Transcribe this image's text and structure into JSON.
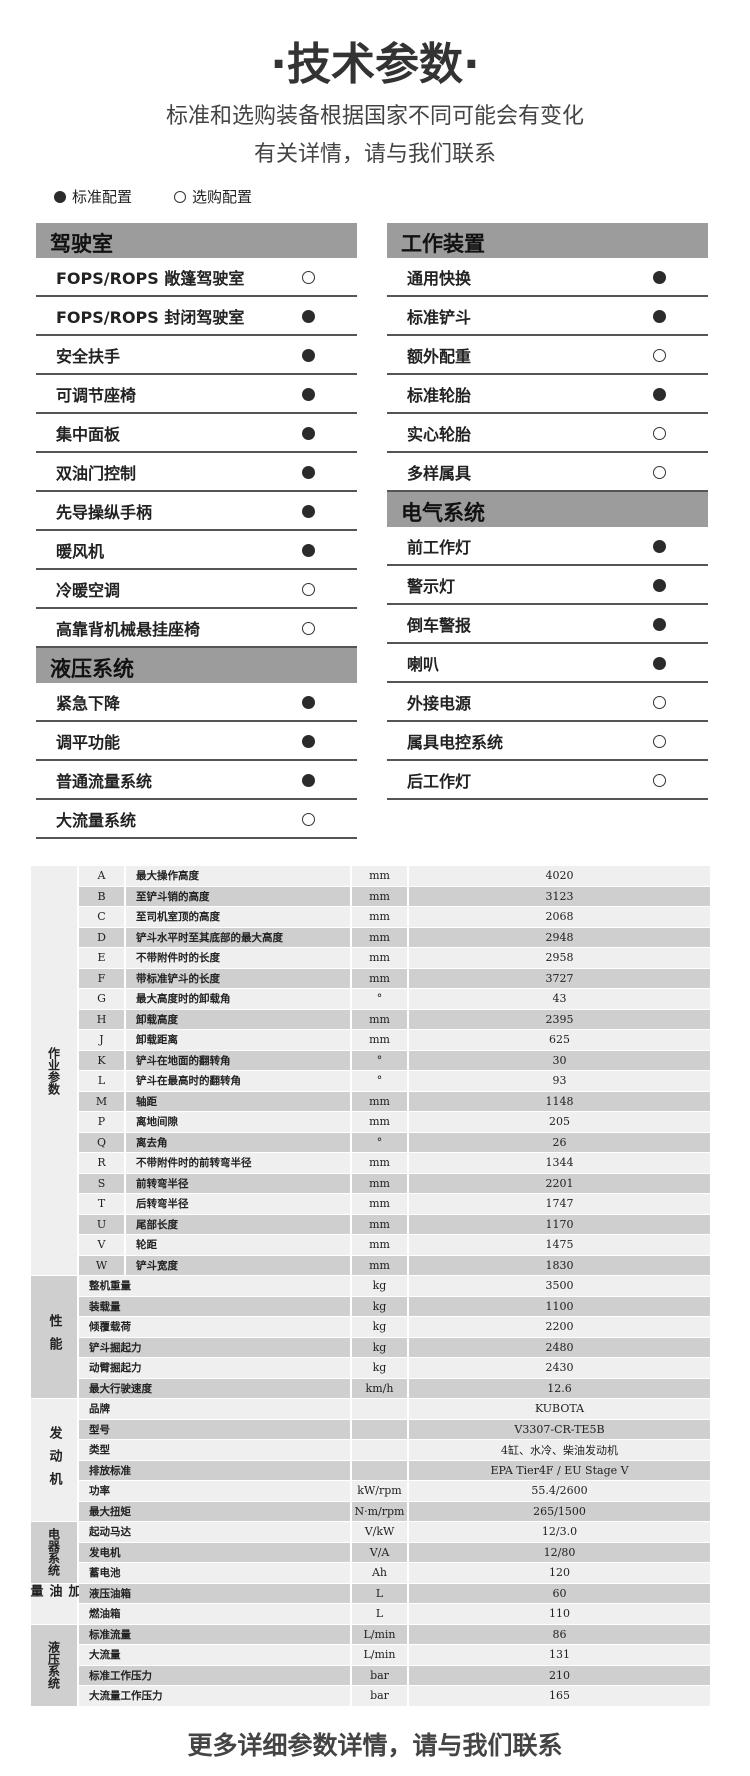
{
  "header": {
    "title": "·技术参数·",
    "subtitle1": "标准和选购装备根据国家不同可能会有变化",
    "subtitle2": "有关详情，请与我们联系"
  },
  "legend": {
    "standard": "标准配置",
    "optional": "选购配置"
  },
  "colors": {
    "section_header": "#9c9c9c",
    "row_light": "#efefef",
    "row_dark": "#cfcfcf",
    "dot": "#2b2b2b"
  },
  "sections_left": [
    {
      "title": "驾驶室",
      "items": [
        {
          "label": "FOPS/ROPS 敞篷驾驶室",
          "state": "optional"
        },
        {
          "label": "FOPS/ROPS 封闭驾驶室",
          "state": "standard"
        },
        {
          "label": "安全扶手",
          "state": "standard"
        },
        {
          "label": "可调节座椅",
          "state": "standard"
        },
        {
          "label": "集中面板",
          "state": "standard"
        },
        {
          "label": "双油门控制",
          "state": "standard"
        },
        {
          "label": "先导操纵手柄",
          "state": "standard"
        },
        {
          "label": "暖风机",
          "state": "standard"
        },
        {
          "label": "冷暖空调",
          "state": "optional"
        },
        {
          "label": "高靠背机械悬挂座椅",
          "state": "optional"
        }
      ]
    },
    {
      "title": "液压系统",
      "items": [
        {
          "label": "紧急下降",
          "state": "standard"
        },
        {
          "label": "调平功能",
          "state": "standard"
        },
        {
          "label": "普通流量系统",
          "state": "standard"
        },
        {
          "label": "大流量系统",
          "state": "optional"
        }
      ]
    }
  ],
  "sections_right": [
    {
      "title": "工作装置",
      "items": [
        {
          "label": "通用快换",
          "state": "standard"
        },
        {
          "label": "标准铲斗",
          "state": "standard"
        },
        {
          "label": "额外配重",
          "state": "optional"
        },
        {
          "label": "标准轮胎",
          "state": "standard"
        },
        {
          "label": "实心轮胎",
          "state": "optional"
        },
        {
          "label": "多样属具",
          "state": "optional"
        }
      ]
    },
    {
      "title": "电气系统",
      "items": [
        {
          "label": "前工作灯",
          "state": "standard"
        },
        {
          "label": "警示灯",
          "state": "standard"
        },
        {
          "label": "倒车警报",
          "state": "standard"
        },
        {
          "label": "喇叭",
          "state": "standard"
        },
        {
          "label": "外接电源",
          "state": "optional"
        },
        {
          "label": "属具电控系统",
          "state": "optional"
        },
        {
          "label": "后工作灯",
          "state": "optional"
        }
      ]
    }
  ],
  "specs": [
    {
      "category": "作业参数",
      "rows": [
        {
          "code": "A",
          "name": "最大操作高度",
          "unit": "mm",
          "value": "4020"
        },
        {
          "code": "B",
          "name": "至铲斗销的高度",
          "unit": "mm",
          "value": "3123"
        },
        {
          "code": "C",
          "name": "至司机室顶的高度",
          "unit": "mm",
          "value": "2068"
        },
        {
          "code": "D",
          "name": "铲斗水平时至其底部的最大高度",
          "unit": "mm",
          "value": "2948"
        },
        {
          "code": "E",
          "name": "不带附件时的长度",
          "unit": "mm",
          "value": "2958"
        },
        {
          "code": "F",
          "name": "带标准铲斗的长度",
          "unit": "mm",
          "value": "3727"
        },
        {
          "code": "G",
          "name": "最大高度时的卸载角",
          "unit": "°",
          "value": "43"
        },
        {
          "code": "H",
          "name": "卸载高度",
          "unit": "mm",
          "value": "2395"
        },
        {
          "code": "J",
          "name": "卸载距离",
          "unit": "mm",
          "value": "625"
        },
        {
          "code": "K",
          "name": "铲斗在地面的翻转角",
          "unit": "°",
          "value": "30"
        },
        {
          "code": "L",
          "name": "铲斗在最高时的翻转角",
          "unit": "°",
          "value": "93"
        },
        {
          "code": "M",
          "name": "轴距",
          "unit": "mm",
          "value": "1148"
        },
        {
          "code": "P",
          "name": "离地间隙",
          "unit": "mm",
          "value": "205"
        },
        {
          "code": "Q",
          "name": "离去角",
          "unit": "°",
          "value": "26"
        },
        {
          "code": "R",
          "name": "不带附件时的前转弯半径",
          "unit": "mm",
          "value": "1344"
        },
        {
          "code": "S",
          "name": "前转弯半径",
          "unit": "mm",
          "value": "2201"
        },
        {
          "code": "T",
          "name": "后转弯半径",
          "unit": "mm",
          "value": "1747"
        },
        {
          "code": "U",
          "name": "尾部长度",
          "unit": "mm",
          "value": "1170"
        },
        {
          "code": "V",
          "name": "轮距",
          "unit": "mm",
          "value": "1475"
        },
        {
          "code": "W",
          "name": "铲斗宽度",
          "unit": "mm",
          "value": "1830"
        }
      ]
    },
    {
      "category": "性能",
      "rows": [
        {
          "name": "整机重量",
          "unit": "kg",
          "value": "3500"
        },
        {
          "name": "装载量",
          "unit": "kg",
          "value": "1100"
        },
        {
          "name": "倾覆载荷",
          "unit": "kg",
          "value": "2200"
        },
        {
          "name": "铲斗掘起力",
          "unit": "kg",
          "value": "2480"
        },
        {
          "name": "动臂掘起力",
          "unit": "kg",
          "value": "2430"
        },
        {
          "name": "最大行驶速度",
          "unit": "km/h",
          "value": "12.6"
        }
      ]
    },
    {
      "category": "发动机",
      "rows": [
        {
          "name": "品牌",
          "unit": "",
          "value": "KUBOTA"
        },
        {
          "name": "型号",
          "unit": "",
          "value": "V3307-CR-TE5B"
        },
        {
          "name": "类型",
          "unit": "",
          "value": "4缸、水冷、柴油发动机"
        },
        {
          "name": "排放标准",
          "unit": "",
          "value": "EPA Tier4F / EU Stage V"
        },
        {
          "name": "功率",
          "unit": "kW/rpm",
          "value": "55.4/2600"
        },
        {
          "name": "最大扭矩",
          "unit": "N·m/rpm",
          "value": "265/1500"
        }
      ]
    },
    {
      "category": "电器系统",
      "rows": [
        {
          "name": "起动马达",
          "unit": "V/kW",
          "value": "12/3.0"
        },
        {
          "name": "发电机",
          "unit": "V/A",
          "value": "12/80"
        },
        {
          "name": "蓄电池",
          "unit": "Ah",
          "value": "120"
        }
      ]
    },
    {
      "category": "加油量",
      "rows": [
        {
          "name": "液压油箱",
          "unit": "L",
          "value": "60"
        },
        {
          "name": "燃油箱",
          "unit": "L",
          "value": "110"
        }
      ]
    },
    {
      "category": "液压系统",
      "rows": [
        {
          "name": "标准流量",
          "unit": "L/min",
          "value": "86"
        },
        {
          "name": "大流量",
          "unit": "L/min",
          "value": "131"
        },
        {
          "name": "标准工作压力",
          "unit": "bar",
          "value": "210"
        },
        {
          "name": "大流量工作压力",
          "unit": "bar",
          "value": "165"
        }
      ]
    }
  ],
  "footer": "更多详细参数详情，请与我们联系"
}
